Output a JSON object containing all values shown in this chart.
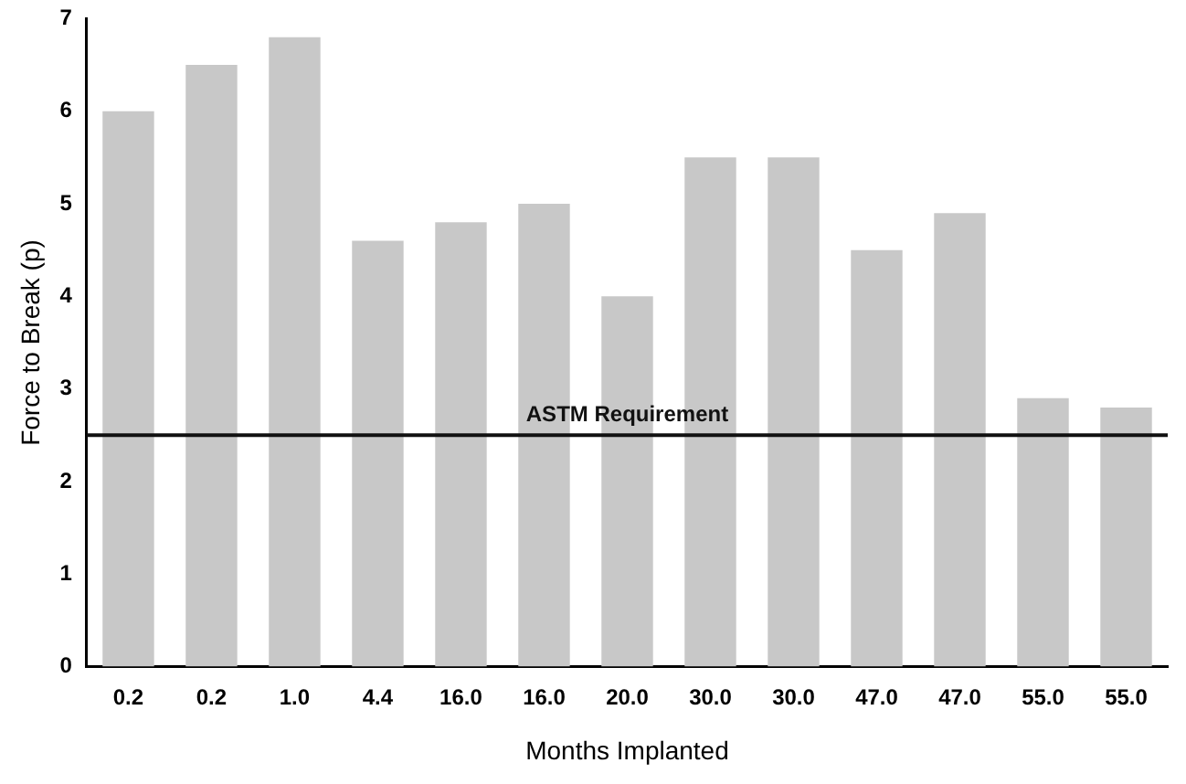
{
  "chart_data": {
    "type": "bar",
    "xlabel": "Months Implanted",
    "ylabel": "Force to Break (p)",
    "categories": [
      "0.2",
      "0.2",
      "1.0",
      "4.4",
      "16.0",
      "16.0",
      "20.0",
      "30.0",
      "30.0",
      "47.0",
      "47.0",
      "55.0",
      "55.0"
    ],
    "values": [
      6.0,
      6.5,
      6.8,
      4.6,
      4.8,
      5.0,
      4.0,
      5.5,
      5.5,
      4.5,
      4.9,
      2.9,
      2.8
    ],
    "color": "#c8c8c8",
    "ylim": [
      0,
      7
    ],
    "yticks": [
      0,
      1,
      2,
      3,
      4,
      5,
      6,
      7
    ],
    "grid": false,
    "legend": false,
    "ref_lines": [
      {
        "axis": "y",
        "value": 2.5,
        "label": "ASTM Requirement",
        "color": "#111111"
      }
    ]
  }
}
